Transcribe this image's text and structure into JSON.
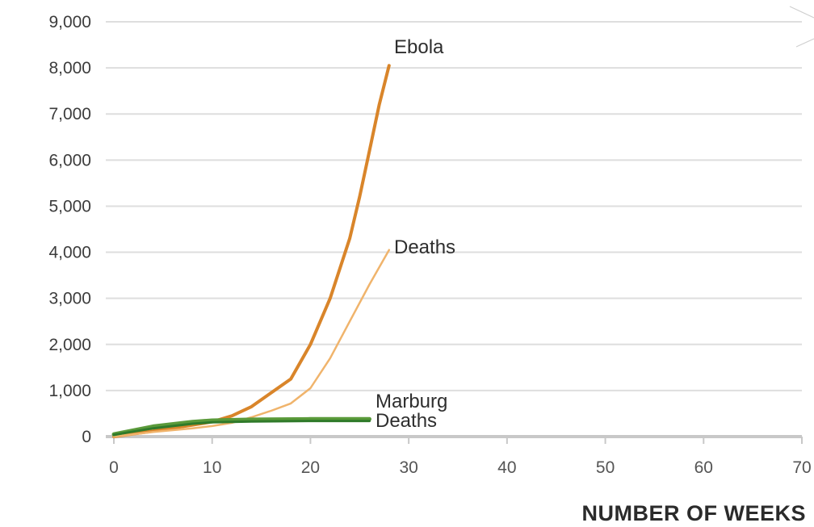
{
  "chart_data": {
    "type": "line",
    "title": "",
    "xlabel": "NUMBER OF WEEKS",
    "ylabel": "",
    "xlim": [
      0,
      70
    ],
    "ylim": [
      0,
      9000
    ],
    "x_ticks": [
      "0",
      "10",
      "20",
      "30",
      "40",
      "50",
      "60",
      "70"
    ],
    "y_ticks": [
      "0",
      "1,000",
      "2,000",
      "3,000",
      "4,000",
      "5,000",
      "6,000",
      "7,000",
      "8,000",
      "9,000"
    ],
    "grid": true,
    "series": [
      {
        "name": "Ebola",
        "color": "#d9852a",
        "points": [
          [
            0,
            0
          ],
          [
            4,
            120
          ],
          [
            8,
            250
          ],
          [
            10,
            320
          ],
          [
            12,
            450
          ],
          [
            14,
            650
          ],
          [
            16,
            950
          ],
          [
            18,
            1250
          ],
          [
            20,
            2000
          ],
          [
            22,
            3000
          ],
          [
            24,
            4300
          ],
          [
            25,
            5200
          ],
          [
            26,
            6200
          ],
          [
            27,
            7200
          ],
          [
            28,
            8050
          ]
        ]
      },
      {
        "name": "Deaths",
        "color": "#f0b46c",
        "points": [
          [
            0,
            0
          ],
          [
            4,
            100
          ],
          [
            8,
            180
          ],
          [
            10,
            230
          ],
          [
            12,
            300
          ],
          [
            14,
            420
          ],
          [
            16,
            560
          ],
          [
            18,
            720
          ],
          [
            20,
            1050
          ],
          [
            22,
            1700
          ],
          [
            24,
            2500
          ],
          [
            26,
            3300
          ],
          [
            28,
            4050
          ]
        ]
      },
      {
        "name": "Marburg",
        "color": "#5a9a3a",
        "points": [
          [
            0,
            50
          ],
          [
            4,
            220
          ],
          [
            8,
            320
          ],
          [
            10,
            350
          ],
          [
            14,
            370
          ],
          [
            20,
            380
          ],
          [
            26,
            380
          ]
        ]
      },
      {
        "name": "Deaths",
        "color": "#2f7a2a",
        "points": [
          [
            0,
            40
          ],
          [
            4,
            180
          ],
          [
            8,
            280
          ],
          [
            10,
            310
          ],
          [
            14,
            330
          ],
          [
            20,
            340
          ],
          [
            26,
            340
          ]
        ]
      }
    ]
  }
}
